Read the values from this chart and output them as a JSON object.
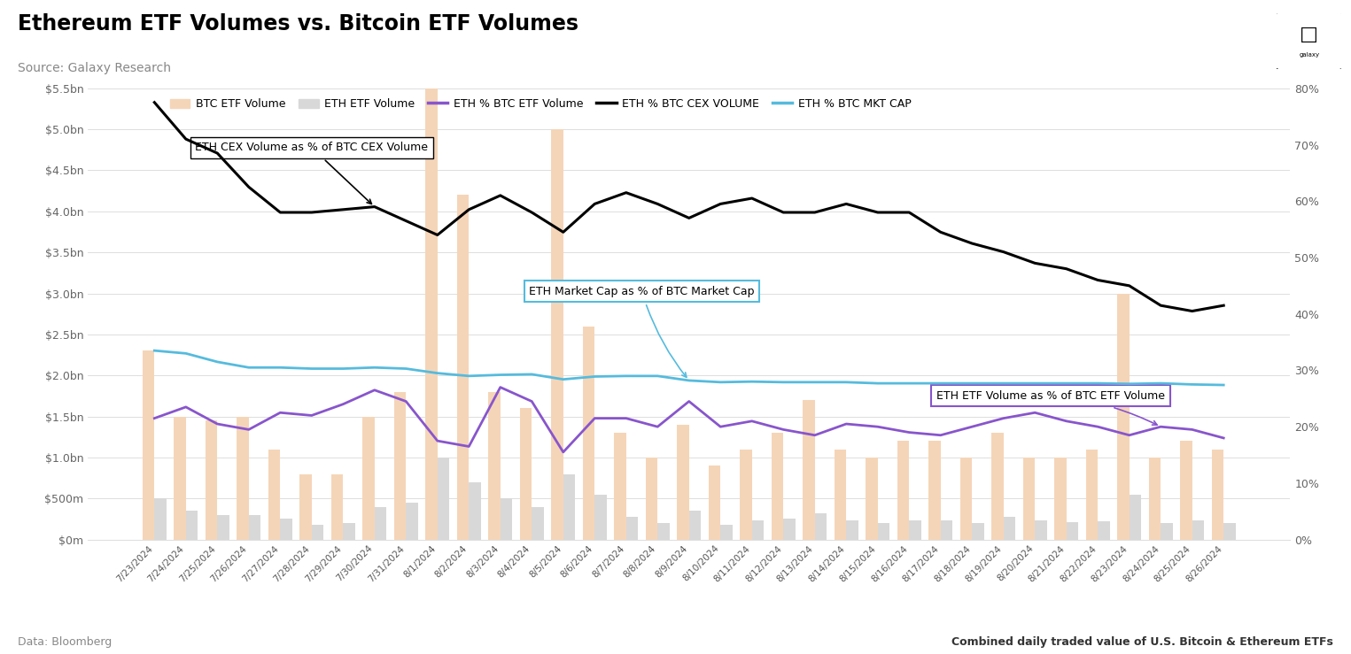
{
  "title": "Ethereum ETF Volumes vs. Bitcoin ETF Volumes",
  "subtitle": "Source: Galaxy Research",
  "footnote_left": "Data: Bloomberg",
  "footnote_right": "Combined daily traded value of U.S. Bitcoin & Ethereum ETFs",
  "dates": [
    "7/23/2024",
    "7/24/2024",
    "7/25/2024",
    "7/26/2024",
    "7/27/2024",
    "7/28/2024",
    "7/29/2024",
    "7/30/2024",
    "7/31/2024",
    "8/1/2024",
    "8/2/2024",
    "8/3/2024",
    "8/4/2024",
    "8/5/2024",
    "8/6/2024",
    "8/7/2024",
    "8/8/2024",
    "8/9/2024",
    "8/10/2024",
    "8/11/2024",
    "8/12/2024",
    "8/13/2024",
    "8/14/2024",
    "8/15/2024",
    "8/16/2024",
    "8/17/2024",
    "8/18/2024",
    "8/19/2024",
    "8/20/2024",
    "8/21/2024",
    "8/22/2024",
    "8/23/2024",
    "8/24/2024",
    "8/25/2024",
    "8/26/2024"
  ],
  "btc_etf_volume": [
    2300000000,
    1500000000,
    1450000000,
    1500000000,
    1100000000,
    800000000,
    800000000,
    1500000000,
    1800000000,
    5500000000,
    4200000000,
    1800000000,
    1600000000,
    5000000000,
    2600000000,
    1300000000,
    1000000000,
    1400000000,
    900000000,
    1100000000,
    1300000000,
    1700000000,
    1100000000,
    1000000000,
    1200000000,
    1200000000,
    1000000000,
    1300000000,
    1000000000,
    1000000000,
    1100000000,
    3000000000,
    1000000000,
    1200000000,
    1100000000
  ],
  "eth_etf_volume": [
    500000000,
    350000000,
    300000000,
    300000000,
    250000000,
    180000000,
    200000000,
    400000000,
    450000000,
    1000000000,
    700000000,
    500000000,
    400000000,
    800000000,
    550000000,
    280000000,
    200000000,
    350000000,
    180000000,
    230000000,
    260000000,
    320000000,
    230000000,
    200000000,
    230000000,
    230000000,
    200000000,
    280000000,
    230000000,
    210000000,
    220000000,
    550000000,
    200000000,
    230000000,
    200000000
  ],
  "eth_pct_btc_etf": [
    0.215,
    0.235,
    0.205,
    0.195,
    0.225,
    0.22,
    0.24,
    0.265,
    0.245,
    0.175,
    0.165,
    0.27,
    0.245,
    0.155,
    0.215,
    0.215,
    0.2,
    0.245,
    0.2,
    0.21,
    0.195,
    0.185,
    0.205,
    0.2,
    0.19,
    0.185,
    0.2,
    0.215,
    0.225,
    0.21,
    0.2,
    0.185,
    0.2,
    0.195,
    0.18
  ],
  "eth_pct_btc_cex": [
    0.775,
    0.71,
    0.685,
    0.625,
    0.58,
    0.58,
    0.585,
    0.59,
    0.565,
    0.54,
    0.585,
    0.61,
    0.58,
    0.545,
    0.595,
    0.615,
    0.595,
    0.57,
    0.595,
    0.605,
    0.58,
    0.58,
    0.595,
    0.58,
    0.58,
    0.545,
    0.525,
    0.51,
    0.49,
    0.48,
    0.46,
    0.45,
    0.415,
    0.405,
    0.415
  ],
  "eth_pct_btc_mktcap": [
    0.335,
    0.33,
    0.315,
    0.305,
    0.305,
    0.303,
    0.303,
    0.305,
    0.303,
    0.295,
    0.29,
    0.292,
    0.293,
    0.284,
    0.289,
    0.29,
    0.29,
    0.282,
    0.279,
    0.28,
    0.279,
    0.279,
    0.279,
    0.277,
    0.277,
    0.277,
    0.277,
    0.277,
    0.277,
    0.277,
    0.277,
    0.276,
    0.277,
    0.275,
    0.274
  ],
  "btc_bar_color": "#f5d5b8",
  "eth_bar_color": "#d8d8d8",
  "eth_etf_line_color": "#8855cc",
  "eth_cex_line_color": "#000000",
  "eth_mktcap_line_color": "#55bbdd",
  "background_color": "#ffffff",
  "ylim_left": [
    0,
    5500000000
  ],
  "ylim_right": [
    0,
    0.8
  ],
  "yticks_left": [
    0,
    500000000,
    1000000000,
    1500000000,
    2000000000,
    2500000000,
    3000000000,
    3500000000,
    4000000000,
    4500000000,
    5000000000,
    5500000000
  ],
  "ytick_labels_left": [
    "$0m",
    "$500m",
    "$1.0bn",
    "$1.5bn",
    "$2.0bn",
    "$2.5bn",
    "$3.0bn",
    "$3.5bn",
    "$4.0bn",
    "$4.5bn",
    "$5.0bn",
    "$5.5bn"
  ],
  "yticks_right": [
    0.0,
    0.1,
    0.2,
    0.3,
    0.4,
    0.5,
    0.6,
    0.7,
    0.8
  ],
  "ytick_labels_right": [
    "0%",
    "10%",
    "20%",
    "30%",
    "40%",
    "50%",
    "60%",
    "70%",
    "80%"
  ]
}
